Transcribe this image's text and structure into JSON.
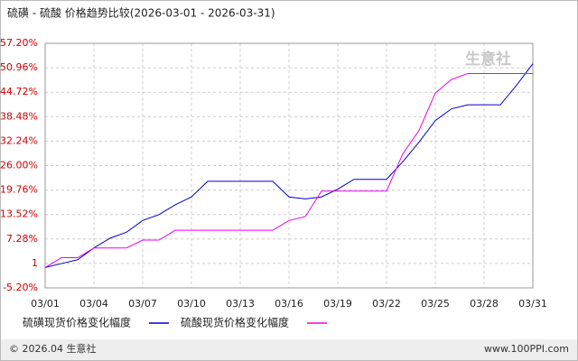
{
  "chart_data": {
    "type": "line",
    "title": "硫磺 - 硫酸 价格趋势比较(2026-03-01 - 2026-03-31)",
    "categories": [
      "03/01",
      null,
      null,
      "03/04",
      null,
      null,
      "03/07",
      null,
      null,
      "03/10",
      null,
      null,
      "03/13",
      null,
      null,
      "03/16",
      null,
      null,
      "03/19",
      null,
      null,
      "03/22",
      null,
      null,
      "03/25",
      null,
      null,
      "03/28",
      null,
      null,
      "03/31"
    ],
    "series": [
      {
        "name": "硫磺现货价格变化幅度",
        "color": "#0000cc",
        "values": [
          0,
          1,
          2,
          5,
          7.5,
          9,
          12,
          13.5,
          16,
          18,
          22,
          22,
          22,
          22,
          22,
          18,
          17.5,
          18,
          20,
          22.5,
          22.5,
          22.5,
          27,
          32,
          37.5,
          40.5,
          41.5,
          41.5,
          41.5,
          46.5,
          52
        ]
      },
      {
        "name": "硫酸现货价格变化幅度",
        "color": "#ee00ee",
        "values": [
          0,
          2.5,
          2.5,
          5,
          5,
          5,
          7,
          7,
          9.5,
          9.5,
          9.5,
          9.5,
          9.5,
          9.5,
          9.5,
          12,
          13,
          19.5,
          19.5,
          19.5,
          19.5,
          19.5,
          29,
          35,
          44.5,
          48,
          49.5,
          49.5,
          49.5,
          49.5,
          49.5
        ]
      }
    ],
    "ylim": [
      -5.2,
      57.2
    ],
    "yticks": [
      {
        "value": -5.2,
        "label": "-5.20%"
      },
      {
        "value": 1.04,
        "label": "1"
      },
      {
        "value": 7.28,
        "label": "7.28%"
      },
      {
        "value": 13.52,
        "label": "13.52%"
      },
      {
        "value": 19.76,
        "label": "19.76%"
      },
      {
        "value": 26,
        "label": "26.00%"
      },
      {
        "value": 32.24,
        "label": "32.24%"
      },
      {
        "value": 38.48,
        "label": "38.48%"
      },
      {
        "value": 44.72,
        "label": "44.72%"
      },
      {
        "value": 50.96,
        "label": "50.96%"
      },
      {
        "value": 57.2,
        "label": "57.20%"
      }
    ],
    "grid": true,
    "watermark": "生意社",
    "footer_left": "© 2026.04 生意社",
    "footer_right": "www.100PPI.com"
  }
}
